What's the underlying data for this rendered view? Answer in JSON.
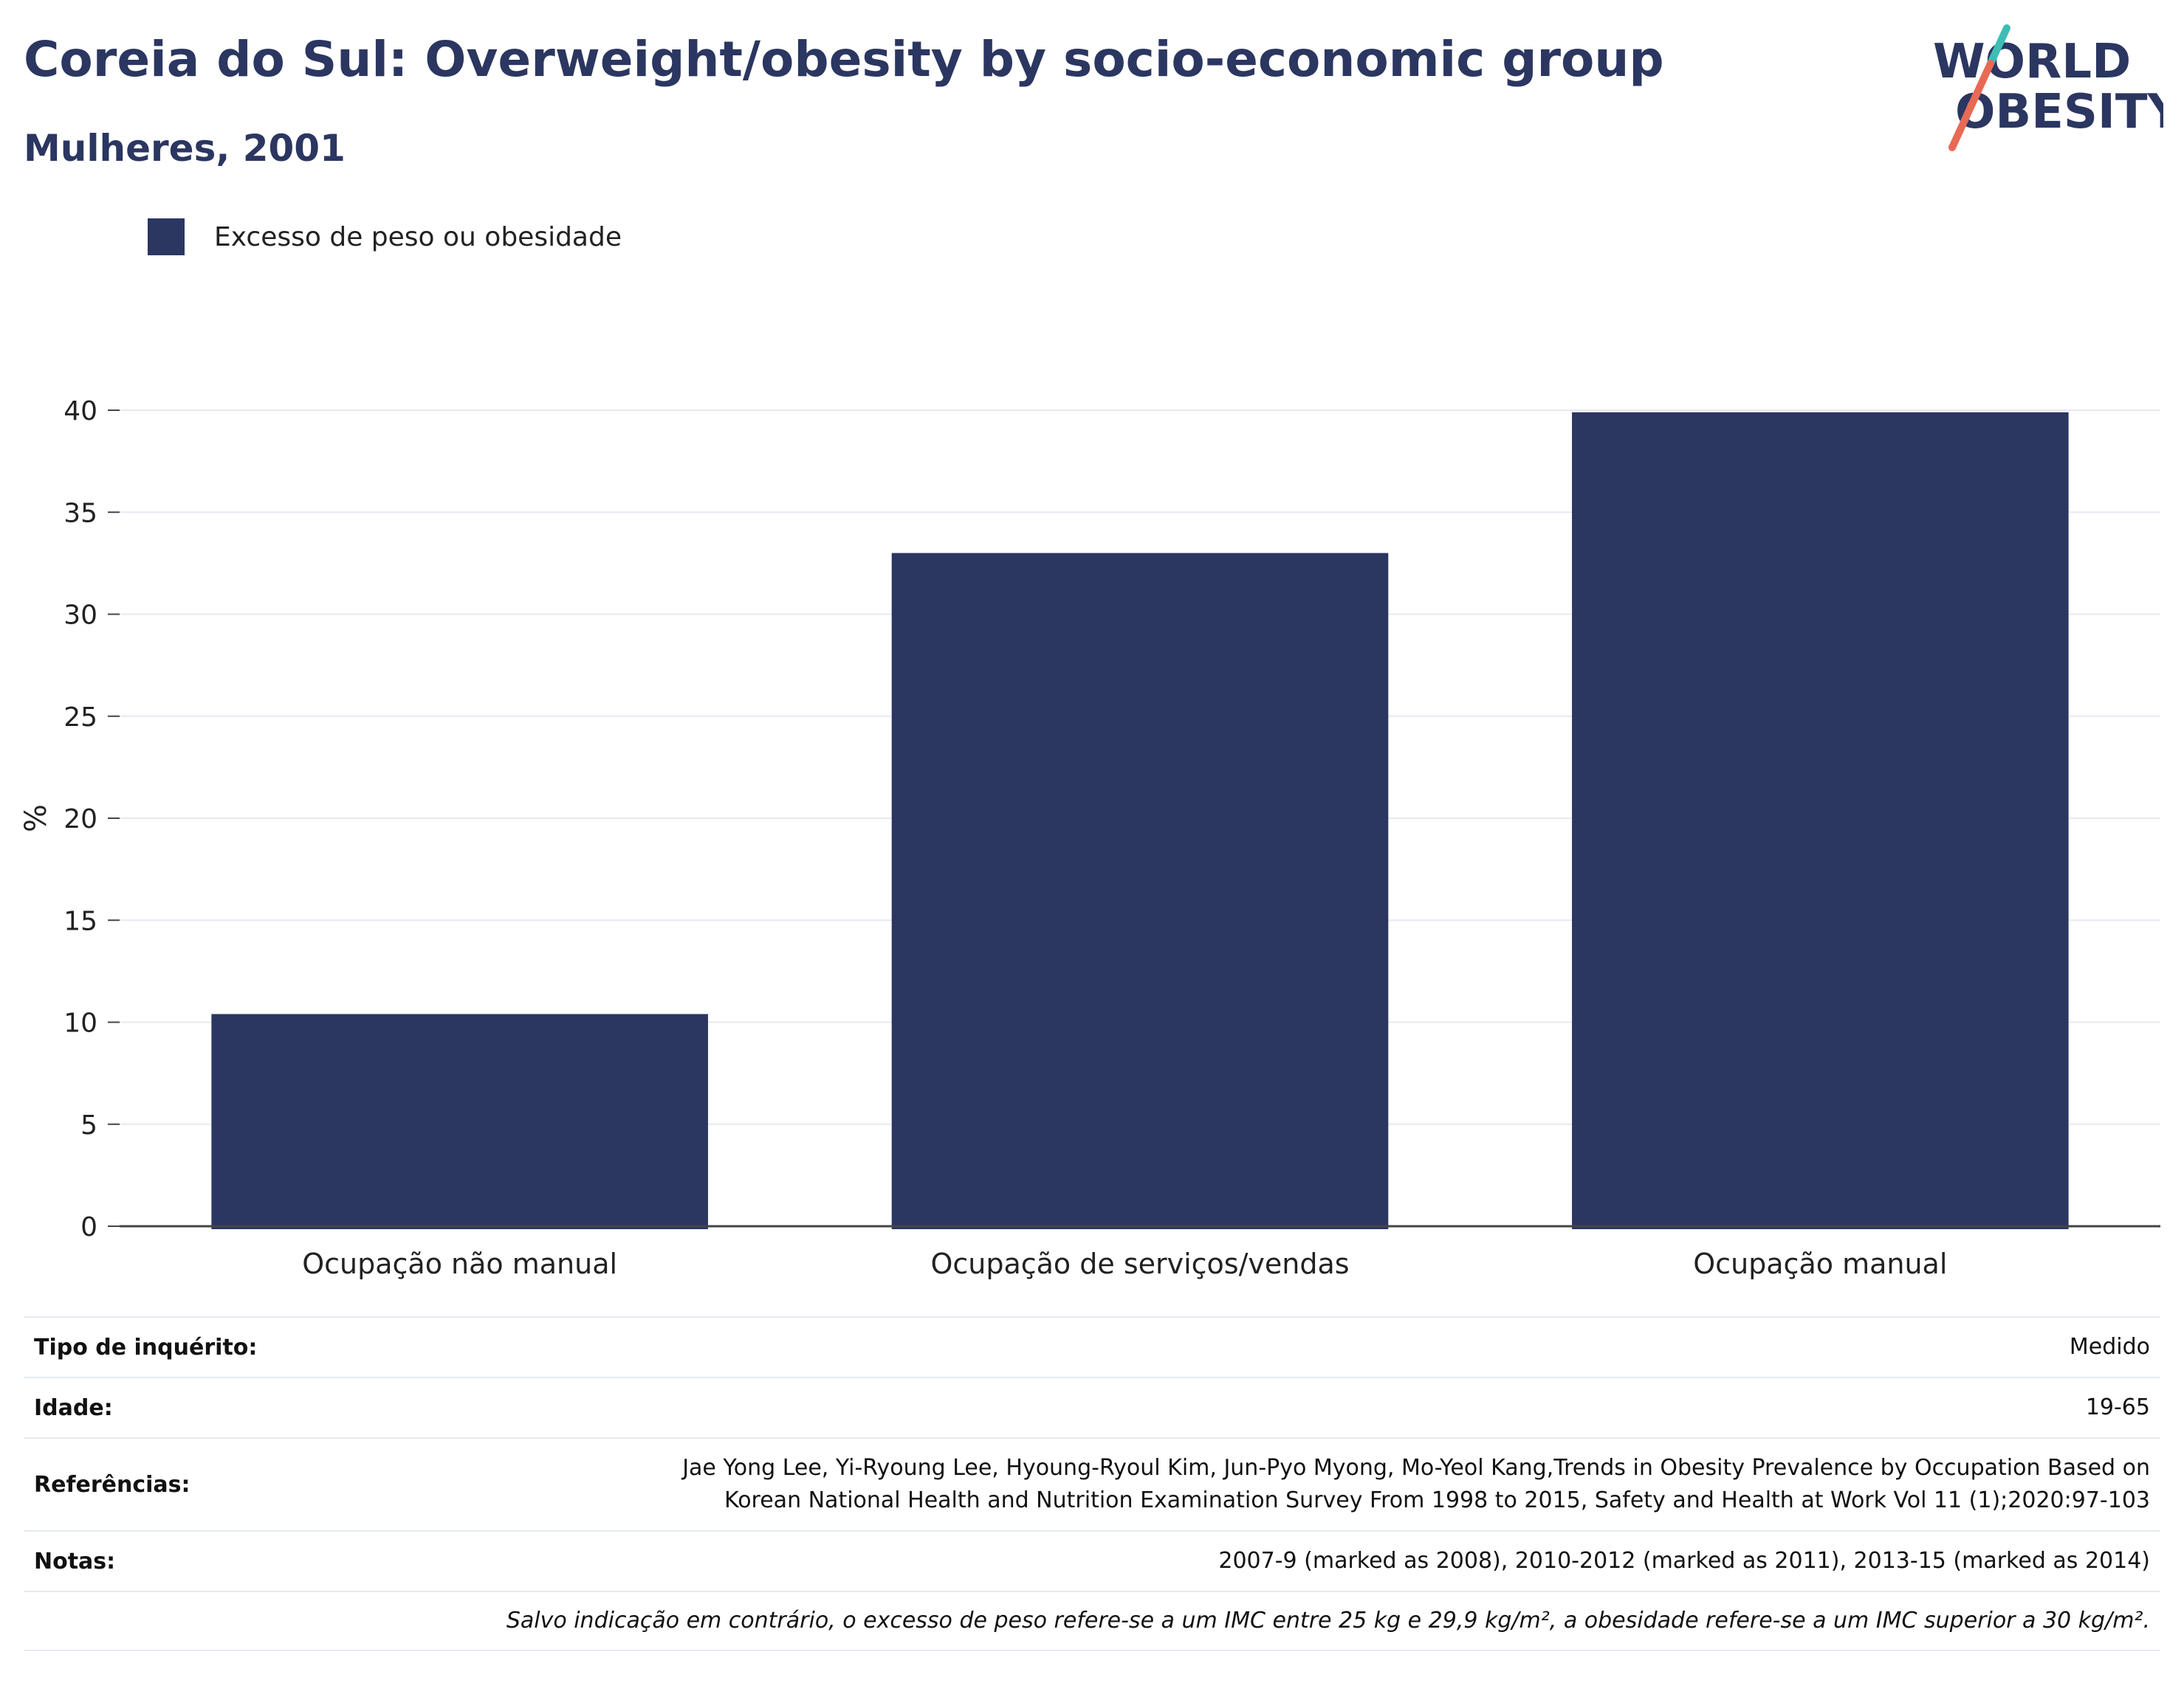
{
  "header": {
    "title": "Coreia do Sul: Overweight/obesity by socio-economic group",
    "subtitle": "Mulheres, 2001",
    "logo_line1": "WORLD",
    "logo_line2": "OBESITY"
  },
  "colors": {
    "bar": "#2b3661",
    "grid": "#e6e9f2",
    "axis": "#444444",
    "logo_teal": "#3dbdb5",
    "logo_coral": "#e86a54"
  },
  "legend": {
    "items": [
      {
        "label": "Excesso de peso ou obesidade",
        "color": "#2b3661"
      }
    ]
  },
  "chart_data": {
    "type": "bar",
    "categories": [
      "Ocupação não manual",
      "Ocupação de serviços/vendas",
      "Ocupação manual"
    ],
    "series": [
      {
        "name": "Excesso de peso ou obesidade",
        "values": [
          10.4,
          33.0,
          39.9
        ]
      }
    ],
    "ylabel": "%",
    "ylim": [
      0,
      40
    ],
    "yticks": [
      0,
      5,
      10,
      15,
      20,
      25,
      30,
      35,
      40
    ],
    "grid": true,
    "legend_position": "top-left"
  },
  "info": {
    "survey_label": "Tipo de inquérito:",
    "survey_value": "Medido",
    "age_label": "Idade:",
    "age_value": "19-65",
    "ref_label": "Referências:",
    "ref_line1": "Jae Yong Lee, Yi-Ryoung Lee, Hyoung-Ryoul Kim, Jun-Pyo Myong, Mo-Yeol Kang,Trends in Obesity Prevalence by Occupation Based on",
    "ref_line2": "Korean National Health and Nutrition Examination Survey From 1998 to 2015, Safety and Health at Work Vol 11 (1);2020:97-103",
    "notes_label": "Notas:",
    "notes_value": "2007-9 (marked as 2008), 2010-2012 (marked as 2011), 2013-15 (marked as 2014)",
    "footnote": "Salvo indicação em contrário, o excesso de peso refere-se a um IMC entre 25 kg e 29,9 kg/m², a obesidade refere-se a um IMC superior a 30 kg/m²."
  }
}
